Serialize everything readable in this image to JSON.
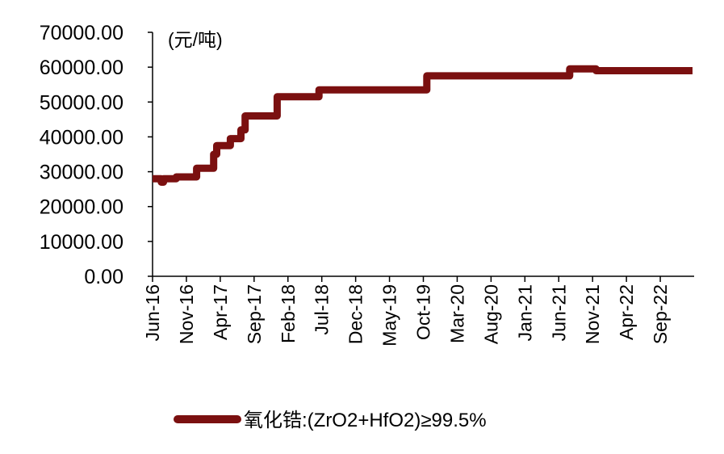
{
  "chart_data": {
    "type": "line",
    "unit_label": "(元/吨)",
    "title": "",
    "xlabel": "",
    "ylabel": "",
    "ylim": [
      0,
      70000
    ],
    "y_ticks": [
      "0.00",
      "10000.00",
      "20000.00",
      "30000.00",
      "40000.00",
      "50000.00",
      "60000.00",
      "70000.00"
    ],
    "x_tick_labels": [
      "Jun-16",
      "Nov-16",
      "Apr-17",
      "Sep-17",
      "Feb-18",
      "Jul-18",
      "Dec-18",
      "May-19",
      "Oct-19",
      "Mar-20",
      "Aug-20",
      "Jan-21",
      "Jun-21",
      "Nov-21",
      "Apr-22",
      "Sep-22"
    ],
    "xlim": [
      "2016-06-01",
      "2023-02-15"
    ],
    "grid": false,
    "legend_position": "bottom",
    "series": [
      {
        "name": "氧化锆:(ZrO2+HfO2)≥99.5%",
        "color": "#7b1010",
        "step": true,
        "points": [
          [
            "2016-06-01",
            28000
          ],
          [
            "2016-07-10",
            27000
          ],
          [
            "2016-07-20",
            28000
          ],
          [
            "2016-09-15",
            28500
          ],
          [
            "2016-12-15",
            31000
          ],
          [
            "2017-03-01",
            35000
          ],
          [
            "2017-03-15",
            37500
          ],
          [
            "2017-05-15",
            39500
          ],
          [
            "2017-07-01",
            42000
          ],
          [
            "2017-07-20",
            46000
          ],
          [
            "2017-12-10",
            51500
          ],
          [
            "2018-06-15",
            53500
          ],
          [
            "2019-10-10",
            57500
          ],
          [
            "2021-07-10",
            59500
          ],
          [
            "2021-11-05",
            59000
          ],
          [
            "2023-02-15",
            59000
          ]
        ]
      }
    ]
  }
}
